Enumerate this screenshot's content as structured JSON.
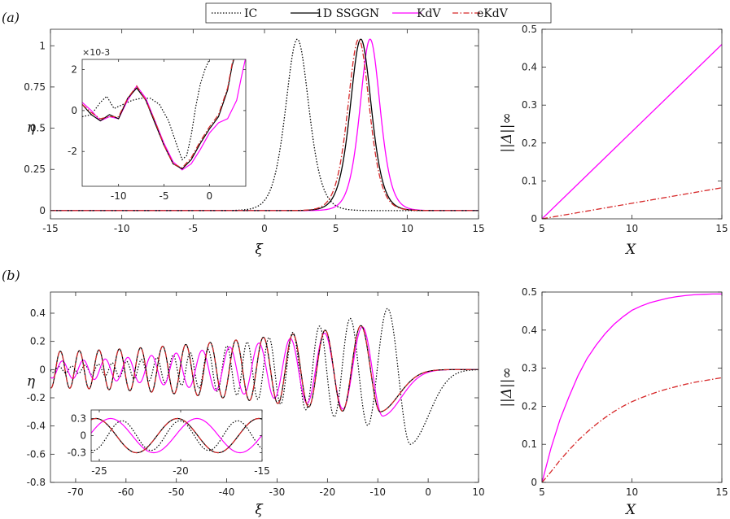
{
  "legend": {
    "entries": [
      {
        "name": "IC",
        "color": "#000000",
        "dash": "1.5 2"
      },
      {
        "name": "1D SSGGN",
        "color": "#000000",
        "dash": ""
      },
      {
        "name": "KdV",
        "color": "#ff00ff",
        "dash": ""
      },
      {
        "name": "eKdV",
        "color": "#d62728",
        "dash": "7 2.5 1.5 2.5"
      }
    ]
  },
  "panel_labels": {
    "a": "(a)",
    "b": "(b)"
  },
  "axis_labels": {
    "xi": "ξ",
    "eta": "η",
    "X": "X",
    "norm": "||Δ||∞"
  },
  "inset_a_exponent": "×10-3",
  "chart_data": [
    {
      "id": "a_main",
      "type": "line",
      "xlim": [
        -15,
        15
      ],
      "ylim": [
        -0.05,
        1.1
      ],
      "xticks": [
        -15,
        -10,
        -5,
        0,
        5,
        10,
        15
      ],
      "yticks": [
        0,
        0.25,
        0.5,
        0.75,
        1
      ],
      "yticklabels": [
        "0",
        "0.25",
        "0.5",
        "0.75",
        "1"
      ],
      "xlabel": "ξ",
      "ylabel": "η",
      "series": [
        {
          "name": "IC",
          "model": "sech2",
          "amplitude": 1.04,
          "center": 2.3,
          "width": 1.1
        },
        {
          "name": "1D SSGGN",
          "model": "sech2",
          "amplitude": 1.04,
          "center": 6.75,
          "width": 1.0
        },
        {
          "name": "KdV",
          "model": "sech2",
          "amplitude": 1.04,
          "center": 7.4,
          "width": 0.95
        },
        {
          "name": "eKdV",
          "model": "sech2",
          "amplitude": 1.04,
          "center": 6.6,
          "width": 1.02
        }
      ],
      "grid": false
    },
    {
      "id": "a_inset",
      "type": "line",
      "xlim": [
        -14,
        4
      ],
      "ylim": [
        -3.7,
        2.5
      ],
      "xticks": [
        -10,
        -5,
        0
      ],
      "yticks": [
        -2,
        0,
        2
      ],
      "yunit": "1e-3",
      "series": [
        {
          "name": "IC",
          "x": [
            -14,
            -13,
            -12,
            -11.3,
            -10.5,
            -9.5,
            -8.5,
            -7.5,
            -6.5,
            -5.5,
            -4.5,
            -3.5,
            -3,
            -2.5,
            -2,
            -1.5,
            -1,
            -0.5,
            0
          ],
          "y": [
            -0.3,
            -0.2,
            0.4,
            0.7,
            0.1,
            0.3,
            0.5,
            0.6,
            0.6,
            0.3,
            -0.5,
            -1.8,
            -2.4,
            -2.2,
            -1.2,
            0.2,
            1.3,
            2.0,
            2.5
          ]
        },
        {
          "name": "1D SSGGN",
          "x": [
            -14,
            -13,
            -12,
            -11,
            -10,
            -9,
            -8,
            -7,
            -6,
            -5,
            -4,
            -3,
            -2,
            -1,
            0,
            1,
            2,
            2.5,
            3
          ],
          "y": [
            0.3,
            -0.2,
            -0.5,
            -0.2,
            -0.4,
            0.6,
            1.1,
            0.5,
            -0.6,
            -1.7,
            -2.6,
            -2.85,
            -2.4,
            -1.6,
            -0.9,
            -0.3,
            1.0,
            2.2,
            3.0
          ]
        },
        {
          "name": "KdV",
          "x": [
            -14,
            -13,
            -12,
            -11,
            -10,
            -9,
            -8,
            -7,
            -6,
            -5,
            -4,
            -3,
            -2,
            -1,
            0,
            1,
            2,
            3,
            3.5,
            4
          ],
          "y": [
            0.4,
            0.0,
            -0.5,
            -0.3,
            -0.4,
            0.5,
            1.2,
            0.6,
            -0.5,
            -1.6,
            -2.5,
            -2.9,
            -2.6,
            -1.9,
            -1.1,
            -0.6,
            -0.4,
            0.5,
            1.6,
            2.6
          ]
        },
        {
          "name": "eKdV",
          "x": [
            -14,
            -13,
            -12,
            -11,
            -10,
            -9,
            -8,
            -7,
            -6,
            -5,
            -4,
            -3,
            -2,
            -1,
            0,
            1,
            2,
            2.5,
            3
          ],
          "y": [
            0.3,
            -0.1,
            -0.4,
            -0.3,
            -0.3,
            0.6,
            1.2,
            0.5,
            -0.5,
            -1.7,
            -2.6,
            -2.8,
            -2.3,
            -1.5,
            -0.8,
            -0.2,
            1.1,
            2.3,
            3.0
          ]
        }
      ]
    },
    {
      "id": "a_right",
      "type": "line",
      "xlim": [
        5,
        15
      ],
      "ylim": [
        0,
        0.5
      ],
      "xticks": [
        5,
        10,
        15
      ],
      "yticks": [
        0,
        0.1,
        0.2,
        0.3,
        0.4,
        0.5
      ],
      "yticklabels": [
        "0",
        "0.1",
        "0.2",
        "0.3",
        "0.4",
        "0.5"
      ],
      "xlabel": "X",
      "ylabel": "||Δ||∞",
      "series": [
        {
          "name": "KdV",
          "x": [
            5,
            15
          ],
          "y": [
            0,
            0.46
          ]
        },
        {
          "name": "eKdV",
          "x": [
            5,
            15
          ],
          "y": [
            0,
            0.082
          ]
        }
      ]
    },
    {
      "id": "b_main",
      "type": "line",
      "xlim": [
        -75,
        10
      ],
      "ylim": [
        -0.8,
        0.55
      ],
      "xticks": [
        -70,
        -60,
        -50,
        -40,
        -30,
        -20,
        -10,
        0,
        10
      ],
      "yticks": [
        -0.8,
        -0.6,
        -0.4,
        -0.2,
        0,
        0.2,
        0.4
      ],
      "yticklabels": [
        "-0.8",
        "-0.6",
        "-0.4",
        "-0.2",
        "0",
        "0.2",
        "0.4"
      ],
      "xlabel": "ξ",
      "ylabel": "η",
      "series": [
        {
          "name": "IC",
          "model": "dsw",
          "trough_x": -3.5,
          "trough_y": -0.53,
          "k_start": 1.6,
          "k_end": 0.62,
          "amp_start": 0.02,
          "amp_end": 0.48,
          "x_start": -75
        },
        {
          "name": "1D SSGGN",
          "model": "dsw",
          "trough_x": -9.5,
          "trough_y": -0.3,
          "k_start": 1.25,
          "k_end": 0.78,
          "amp_start": 0.13,
          "amp_end": 0.33,
          "x_start": -75
        },
        {
          "name": "KdV",
          "model": "dsw",
          "trough_x": -9.0,
          "trough_y": -0.33,
          "k_start": 1.15,
          "k_end": 0.74,
          "amp_start": 0.06,
          "amp_end": 0.33,
          "x_start": -75
        },
        {
          "name": "eKdV",
          "model": "dsw",
          "trough_x": -9.5,
          "trough_y": -0.3,
          "k_start": 1.25,
          "k_end": 0.78,
          "amp_start": 0.13,
          "amp_end": 0.33,
          "x_start": -75
        }
      ]
    },
    {
      "id": "b_inset",
      "type": "line",
      "xlim": [
        -25.5,
        -15
      ],
      "ylim": [
        -0.45,
        0.45
      ],
      "xticks": [
        -25,
        -20,
        -15
      ],
      "yticks": [
        -0.3,
        0,
        0.3
      ],
      "yticklabels": [
        "-0.3",
        "0",
        "0.3"
      ],
      "series": [
        {
          "name": "IC",
          "amplitude": 0.26,
          "period": 3.55,
          "phase_x": -16.5
        },
        {
          "name": "1D SSGGN",
          "amplitude": 0.3,
          "period": 5.0,
          "phase_x": -15.2
        },
        {
          "name": "KdV",
          "amplitude": 0.3,
          "period": 5.3,
          "phase_x": -19.0
        },
        {
          "name": "eKdV",
          "amplitude": 0.3,
          "period": 5.0,
          "phase_x": -15.2
        }
      ]
    },
    {
      "id": "b_right",
      "type": "line",
      "xlim": [
        5,
        15
      ],
      "ylim": [
        0,
        0.5
      ],
      "xticks": [
        5,
        10,
        15
      ],
      "yticks": [
        0,
        0.1,
        0.2,
        0.3,
        0.4,
        0.5
      ],
      "yticklabels": [
        "0",
        "0.1",
        "0.2",
        "0.3",
        "0.4",
        "0.5"
      ],
      "xlabel": "X",
      "ylabel": "||Δ||∞",
      "series": [
        {
          "name": "KdV",
          "x": [
            5,
            5.5,
            6,
            6.5,
            7,
            7.5,
            8,
            8.5,
            9,
            9.5,
            10,
            10.5,
            11,
            11.5,
            12,
            12.5,
            13,
            13.5,
            14,
            14.5,
            15
          ],
          "y": [
            0,
            0.09,
            0.165,
            0.225,
            0.28,
            0.325,
            0.36,
            0.39,
            0.415,
            0.435,
            0.452,
            0.463,
            0.472,
            0.478,
            0.484,
            0.488,
            0.491,
            0.493,
            0.494,
            0.495,
            0.495
          ]
        },
        {
          "name": "eKdV",
          "x": [
            5,
            5.5,
            6,
            6.5,
            7,
            7.5,
            8,
            8.5,
            9,
            9.5,
            10,
            10.5,
            11,
            11.5,
            12,
            12.5,
            13,
            13.5,
            14,
            14.5,
            15
          ],
          "y": [
            0,
            0.028,
            0.058,
            0.085,
            0.11,
            0.132,
            0.152,
            0.17,
            0.186,
            0.2,
            0.212,
            0.222,
            0.231,
            0.239,
            0.246,
            0.252,
            0.258,
            0.263,
            0.267,
            0.271,
            0.275
          ]
        }
      ]
    }
  ]
}
